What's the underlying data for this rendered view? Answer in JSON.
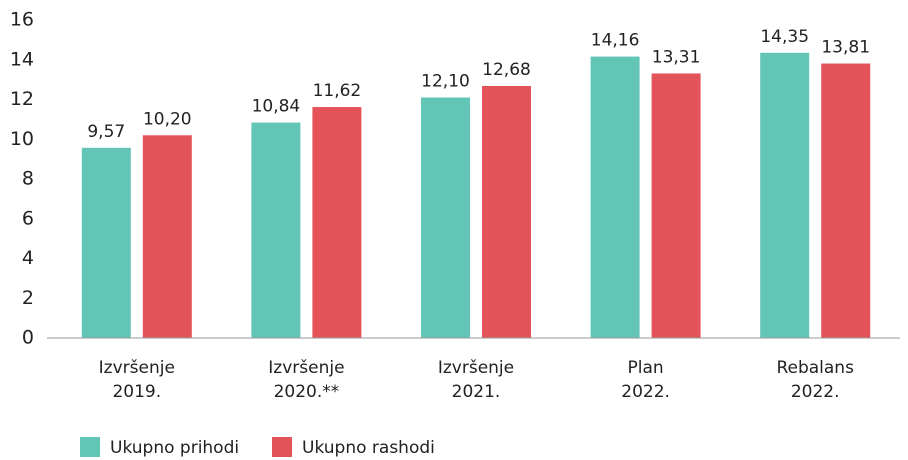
{
  "chart_data": {
    "type": "bar",
    "categories": [
      "Izvršenje\n2019.",
      "Izvršenje\n2020.**",
      "Izvršenje\n2021.",
      "Plan\n2022.",
      "Rebalans\n2022."
    ],
    "series": [
      {
        "name": "Ukupno prihodi",
        "color": "#63c5b6",
        "values": [
          9.57,
          10.84,
          12.1,
          14.16,
          14.35
        ],
        "value_labels": [
          "9,57",
          "10,84",
          "12,10",
          "14,16",
          "14,35"
        ]
      },
      {
        "name": "Ukupno rashodi",
        "color": "#e5535a",
        "values": [
          10.2,
          11.62,
          12.68,
          13.31,
          13.81
        ],
        "value_labels": [
          "10,20",
          "11,62",
          "12,68",
          "13,31",
          "13,81"
        ]
      }
    ],
    "ylim": [
      0,
      16
    ],
    "yticks": [
      0,
      2,
      4,
      6,
      8,
      10,
      12,
      14,
      16
    ],
    "grid": false,
    "legend": "bottom"
  }
}
